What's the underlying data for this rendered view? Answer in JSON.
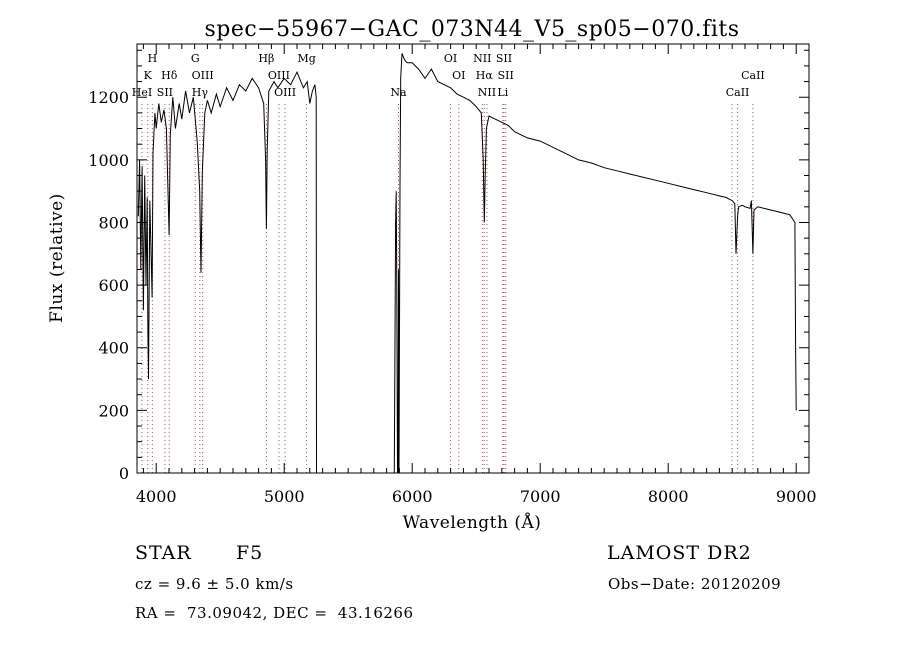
{
  "chart_data": {
    "type": "line",
    "title": "spec−55967−GAC_073N44_V5_sp05−070.fits",
    "xlabel": "Wavelength (Å)",
    "ylabel": "Flux (relative)",
    "xlim": [
      3850,
      9100
    ],
    "ylim": [
      0,
      1370
    ],
    "xticks": [
      4000,
      5000,
      6000,
      7000,
      8000,
      9000
    ],
    "yticks": [
      0,
      200,
      400,
      600,
      800,
      1000,
      1200
    ],
    "grid": false,
    "line_color": "#000000",
    "marker_color": "#e04040",
    "series": [
      {
        "x": [
          3860,
          3870,
          3880,
          3890,
          3900,
          3910,
          3920,
          3930,
          3935,
          3940,
          3950,
          3960,
          3968,
          3975,
          3990,
          4000,
          4020,
          4040,
          4060,
          4080,
          4101,
          4110,
          4130,
          4150,
          4180,
          4200,
          4230,
          4260,
          4290,
          4320,
          4340,
          4350,
          4360,
          4380,
          4400,
          4430,
          4470,
          4500,
          4550,
          4600,
          4650,
          4700,
          4750,
          4800,
          4840,
          4855,
          4861,
          4867,
          4880,
          4920,
          4950,
          5000,
          5050,
          5100,
          5150,
          5180,
          5200,
          5220,
          5240,
          5250,
          5252,
          5260,
          5860,
          5870,
          5875,
          5880,
          5885,
          5890,
          5893,
          5897,
          5905,
          5910,
          5920,
          5940,
          5960,
          6000,
          6050,
          6100,
          6150,
          6200,
          6250,
          6300,
          6350,
          6400,
          6450,
          6500,
          6540,
          6555,
          6563,
          6570,
          6580,
          6600,
          6650,
          6700,
          6750,
          6800,
          6900,
          7000,
          7100,
          7200,
          7300,
          7400,
          7500,
          7600,
          7700,
          7800,
          7900,
          8000,
          8100,
          8200,
          8300,
          8400,
          8450,
          8500,
          8520,
          8530,
          8542,
          8550,
          8580,
          8600,
          8640,
          8650,
          8662,
          8670,
          8700,
          8750,
          8800,
          8850,
          8900,
          8950,
          8990,
          8995,
          9000
        ],
        "y": [
          820,
          1000,
          650,
          980,
          520,
          950,
          600,
          880,
          450,
          300,
          870,
          700,
          560,
          1020,
          1150,
          1100,
          1180,
          1120,
          1160,
          1100,
          760,
          1080,
          1200,
          1100,
          1180,
          1130,
          1220,
          1150,
          1200,
          1060,
          900,
          640,
          960,
          1150,
          1190,
          1150,
          1210,
          1170,
          1230,
          1190,
          1240,
          1220,
          1260,
          1230,
          1180,
          1000,
          780,
          1030,
          1220,
          1250,
          1230,
          1260,
          1240,
          1280,
          1230,
          1250,
          1180,
          1220,
          1240,
          1200,
          0,
          0,
          0,
          800,
          900,
          600,
          0,
          0,
          650,
          0,
          920,
          1260,
          1340,
          1320,
          1310,
          1310,
          1290,
          1260,
          1290,
          1250,
          1240,
          1230,
          1210,
          1200,
          1190,
          1170,
          1150,
          1000,
          800,
          950,
          1100,
          1140,
          1130,
          1120,
          1110,
          1090,
          1070,
          1060,
          1040,
          1020,
          1000,
          990,
          975,
          965,
          955,
          945,
          935,
          925,
          915,
          905,
          895,
          885,
          880,
          870,
          860,
          700,
          820,
          850,
          855,
          850,
          845,
          870,
          700,
          840,
          850,
          845,
          840,
          835,
          830,
          825,
          800,
          400,
          200
        ]
      }
    ],
    "annotations": [
      {
        "text": "H",
        "x": 3970,
        "row": 1
      },
      {
        "text": "K",
        "x": 3934,
        "row": 2
      },
      {
        "text": "Hδ",
        "x": 4102,
        "row": 2
      },
      {
        "text": "HeI",
        "x": 3889,
        "row": 3
      },
      {
        "text": "SII",
        "x": 4068,
        "row": 3
      },
      {
        "text": "G",
        "x": 4305,
        "row": 1
      },
      {
        "text": "OIII",
        "x": 4363,
        "row": 2
      },
      {
        "text": "Hγ",
        "x": 4341,
        "row": 3
      },
      {
        "text": "Hβ",
        "x": 4861,
        "row": 1
      },
      {
        "text": "OIII",
        "x": 4959,
        "row": 2
      },
      {
        "text": "OIII",
        "x": 5007,
        "row": 3
      },
      {
        "text": "Mg",
        "x": 5175,
        "row": 1
      },
      {
        "text": "Na",
        "x": 5893,
        "row": 3
      },
      {
        "text": "OI",
        "x": 6300,
        "row": 1
      },
      {
        "text": "OI",
        "x": 6364,
        "row": 2
      },
      {
        "text": "NII",
        "x": 6548,
        "row": 1
      },
      {
        "text": "SII",
        "x": 6717,
        "row": 1
      },
      {
        "text": "Hα",
        "x": 6563,
        "row": 2
      },
      {
        "text": "SII",
        "x": 6731,
        "row": 2
      },
      {
        "text": "NII",
        "x": 6584,
        "row": 3
      },
      {
        "text": "Li",
        "x": 6708,
        "row": 3
      },
      {
        "text": "CaII",
        "x": 8662,
        "row": 2
      },
      {
        "text": "CaII",
        "x": 8542,
        "row": 3
      }
    ],
    "line_markers": [
      3889,
      3934,
      3970,
      4068,
      4102,
      4305,
      4341,
      4363,
      4861,
      4959,
      5007,
      5175,
      5893,
      6300,
      6364,
      6548,
      6563,
      6584,
      6708,
      6717,
      6731,
      8498,
      8542,
      8662
    ]
  },
  "info": {
    "object_class": "STAR",
    "subclass": "F5",
    "survey": "LAMOST DR2",
    "cz_line": "cz = 9.6 ± 5.0 km/s",
    "obs_date_line": "Obs−Date: 20120209",
    "coords_line": "RA =  73.09042, DEC =  43.16266"
  }
}
